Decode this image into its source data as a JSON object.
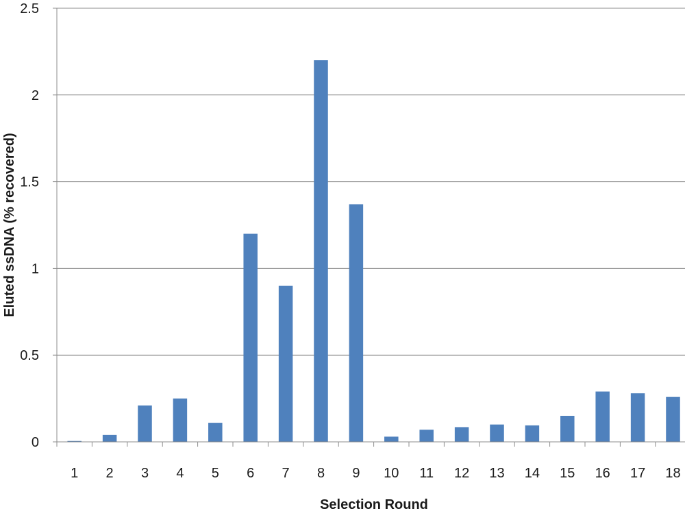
{
  "chart_data": {
    "type": "bar",
    "title": "",
    "xlabel": "Selection Round",
    "ylabel": "Eluted ssDNA (% recovered)",
    "categories": [
      "1",
      "2",
      "3",
      "4",
      "5",
      "6",
      "7",
      "8",
      "9",
      "10",
      "11",
      "12",
      "13",
      "14",
      "15",
      "16",
      "17",
      "18"
    ],
    "values": [
      0.005,
      0.04,
      0.21,
      0.25,
      0.11,
      1.2,
      0.9,
      2.2,
      1.37,
      0.03,
      0.07,
      0.085,
      0.1,
      0.095,
      0.15,
      0.29,
      0.28,
      0.26
    ],
    "ylim": [
      0,
      2.5
    ],
    "yticks": [
      "0",
      "0.5",
      "1",
      "1.5",
      "2",
      "2.5"
    ],
    "grid": true,
    "legend": "none",
    "colors": {
      "bar": "#4f81bd"
    }
  }
}
